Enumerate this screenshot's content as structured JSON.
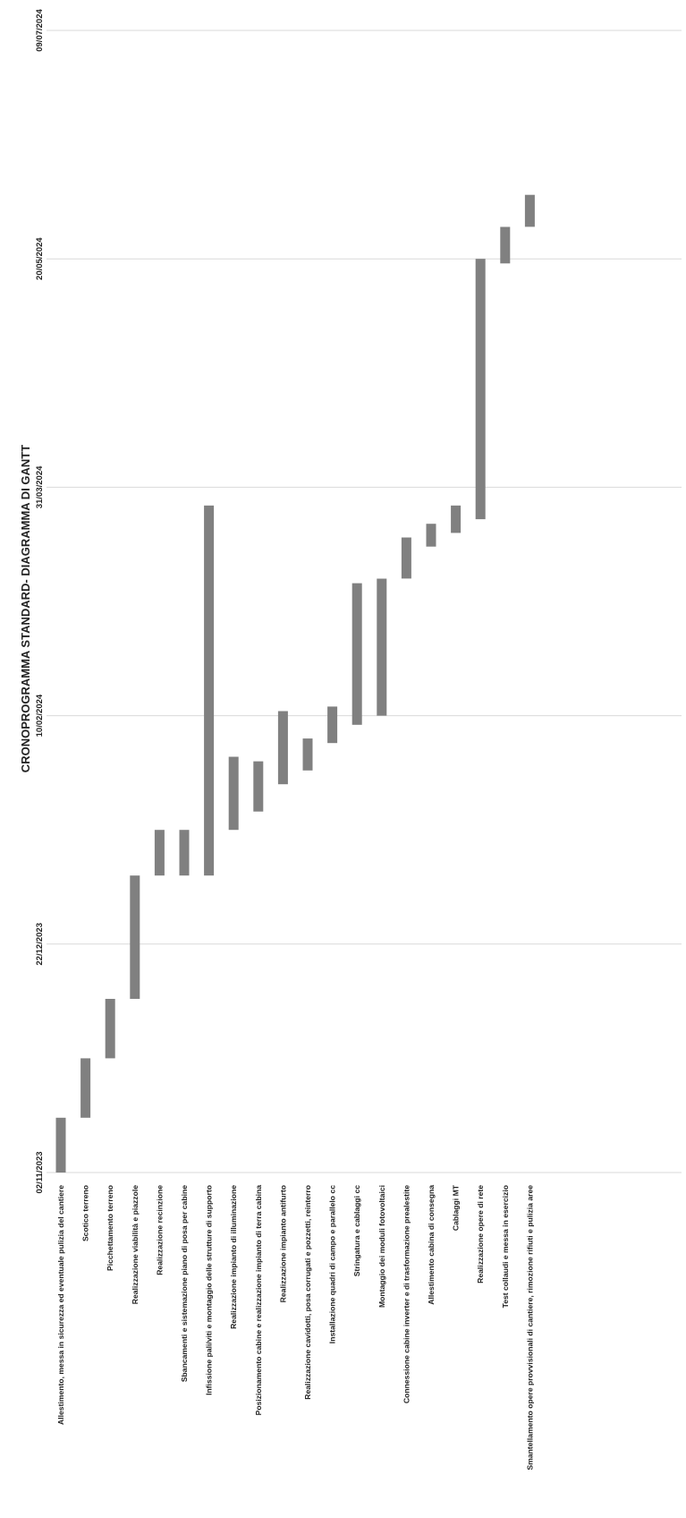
{
  "chart_data": {
    "type": "bar",
    "orientation": "rotated-gantt",
    "title": "CRONOPROGRAMMA STANDARD- DIAGRAMMA DI GANTT",
    "xlabel": "",
    "ylabel": "",
    "grid": true,
    "colors": {
      "bar": "#808080",
      "grid": "#d9d9d9",
      "text": "#222222"
    },
    "axis": {
      "range": [
        "2023-11-02",
        "2024-07-09"
      ],
      "tick_values": [
        "2023-11-02",
        "2023-12-22",
        "2024-02-10",
        "2024-03-31",
        "2024-05-20",
        "2024-07-09"
      ],
      "tick_labels": [
        "02/11/2023",
        "22/12/2023",
        "10/02/2024",
        "31/03/2024",
        "20/05/2024",
        "09/07/2024"
      ]
    },
    "tasks": [
      {
        "name": "Allestimento, messa in sicurezza ed eventuale pulizia del cantiere",
        "start": "2023-11-02",
        "end": "2023-11-14"
      },
      {
        "name": "Scotico terreno",
        "start": "2023-11-14",
        "end": "2023-11-27"
      },
      {
        "name": "Picchettamento terreno",
        "start": "2023-11-27",
        "end": "2023-12-10"
      },
      {
        "name": "Realizzazione viabilità e piazzole",
        "start": "2023-12-10",
        "end": "2024-01-06"
      },
      {
        "name": "Realizzazione recinzione",
        "start": "2024-01-06",
        "end": "2024-01-16"
      },
      {
        "name": "Sbancamenti e sistemazione piano di posa per cabine",
        "start": "2024-01-06",
        "end": "2024-01-16"
      },
      {
        "name": "Infissione pali/viti e montaggio delle strutture di supporto",
        "start": "2024-01-06",
        "end": "2024-03-27"
      },
      {
        "name": "Realizzazione impianto di illuminazione",
        "start": "2024-01-16",
        "end": "2024-02-01"
      },
      {
        "name": "Posizionamento cabine e realizzazione impianto di terra cabina",
        "start": "2024-01-20",
        "end": "2024-01-31"
      },
      {
        "name": "Realizzazione impianto antifurto",
        "start": "2024-01-26",
        "end": "2024-02-11"
      },
      {
        "name": "Realizzazione cavidotti, posa corrugati e pozzetti, reinterro",
        "start": "2024-01-29",
        "end": "2024-02-05"
      },
      {
        "name": "Installazione quadri di campo e parallelo cc",
        "start": "2024-02-04",
        "end": "2024-02-12"
      },
      {
        "name": "Stringatura e cablaggi cc",
        "start": "2024-02-08",
        "end": "2024-03-10"
      },
      {
        "name": "Montaggio dei moduli fotovoltaici",
        "start": "2024-02-10",
        "end": "2024-03-11"
      },
      {
        "name": "Connessione cabine inverter e di trasformazione prealestite",
        "start": "2024-03-11",
        "end": "2024-03-20"
      },
      {
        "name": "Allestimento cabina di consegna",
        "start": "2024-03-18",
        "end": "2024-03-23"
      },
      {
        "name": "Cablaggi MT",
        "start": "2024-03-21",
        "end": "2024-03-27"
      },
      {
        "name": "Realizzazione opere di rete",
        "start": "2024-03-24",
        "end": "2024-05-20"
      },
      {
        "name": "Test collaudi e messa in esercizio",
        "start": "2024-05-19",
        "end": "2024-05-27"
      },
      {
        "name": "Smantellamento opere provvisionali di cantiere, rimozione rifiuti e pulizia aree",
        "start": "2024-05-27",
        "end": "2024-06-03"
      }
    ]
  }
}
